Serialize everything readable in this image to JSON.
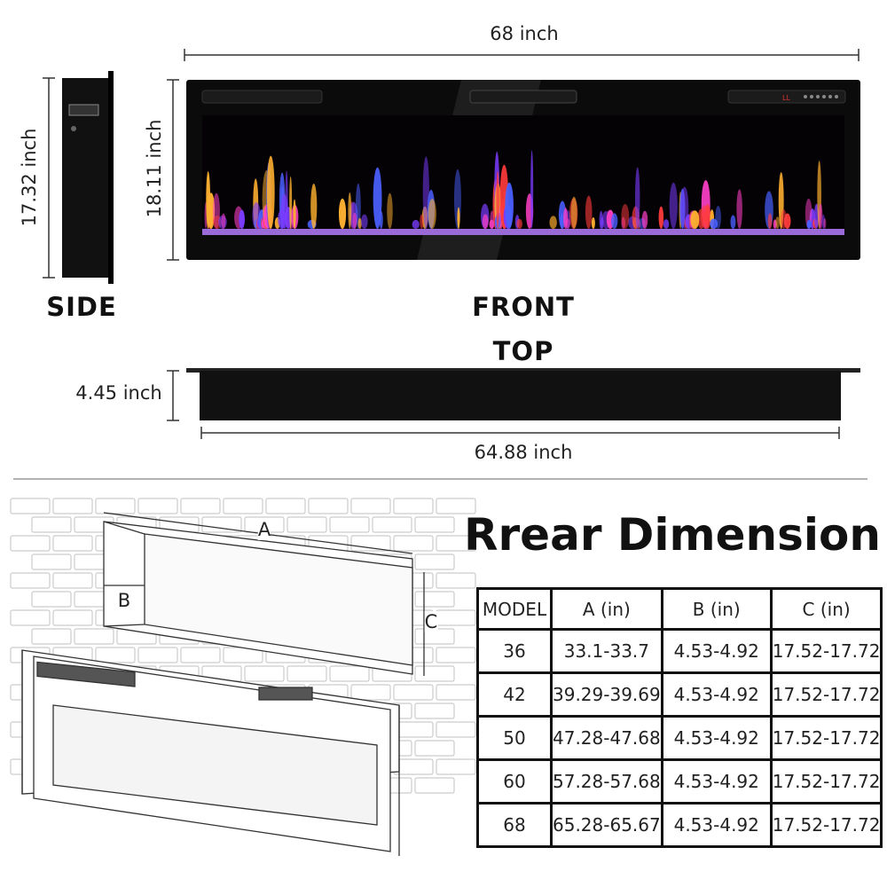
{
  "front": {
    "width_label": "68 inch",
    "height_label": "18.11 inch",
    "view_label": "FRONT"
  },
  "side": {
    "height_label": "17.32 inch",
    "view_label": "SIDE"
  },
  "top": {
    "view_label": "TOP",
    "depth_label": "4.45 inch",
    "width_label": "64.88 inch"
  },
  "recess": {
    "label_a": "A",
    "label_b": "B",
    "label_c": "C"
  },
  "rear_dimension": {
    "title": "Rrear Dimension",
    "headers": [
      "MODEL",
      "A (in)",
      "B (in)",
      "C (in)"
    ],
    "rows": [
      [
        "36",
        "33.1-33.7",
        "4.53-4.92",
        "17.52-17.72"
      ],
      [
        "42",
        "39.29-39.69",
        "4.53-4.92",
        "17.52-17.72"
      ],
      [
        "50",
        "47.28-47.68",
        "4.53-4.92",
        "17.52-17.72"
      ],
      [
        "60",
        "57.28-57.68",
        "4.53-4.92",
        "17.52-17.72"
      ],
      [
        "68",
        "65.28-65.67",
        "4.53-4.92",
        "17.52-17.72"
      ]
    ]
  },
  "colors": {
    "frame": "#0a0a0a",
    "flame_palette": [
      "#ff3b3b",
      "#ffb030",
      "#7a3cff",
      "#ff40c8",
      "#4a60ff"
    ]
  }
}
